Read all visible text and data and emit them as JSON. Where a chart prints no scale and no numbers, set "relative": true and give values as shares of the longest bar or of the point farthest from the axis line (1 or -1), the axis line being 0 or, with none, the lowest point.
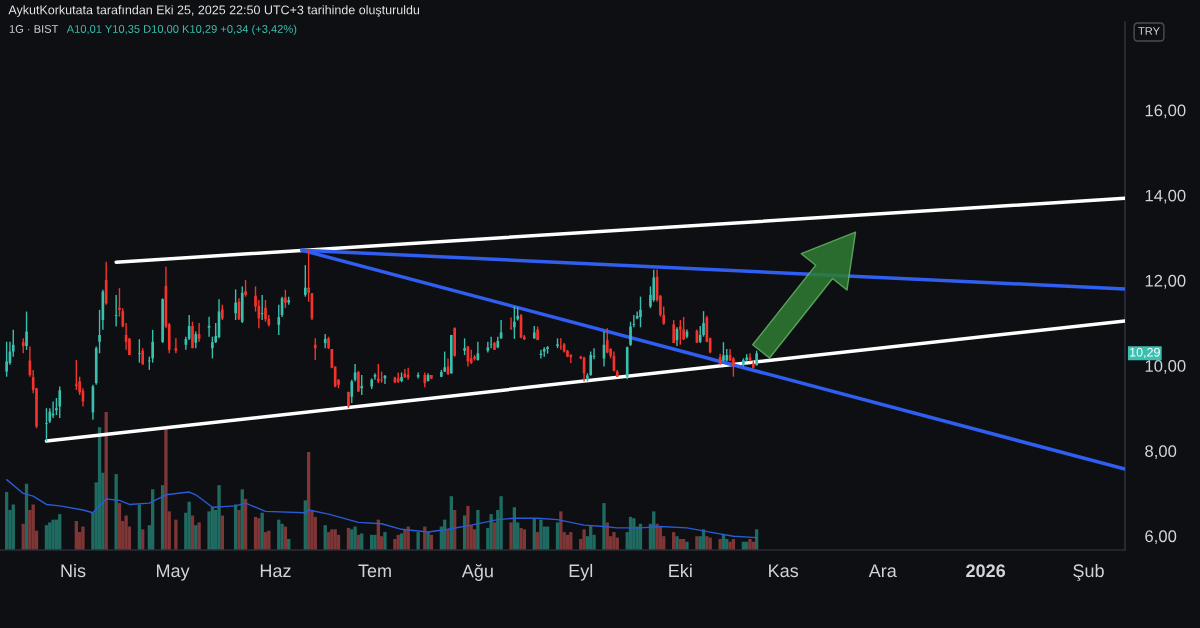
{
  "chart_data": [
    {
      "type": "candlestick",
      "title": "AykutKorkutata tarafından Eki 25, 2025 22:50 UTC+3 tarihinde oluşturuldu",
      "subtitle": "1G · BIST",
      "annotations": [
        "A10,01 Y10,35 D10,00 K10,29 +0,34 (+3,42%)",
        "TRY",
        "10,29"
      ],
      "x": [
        "2025-03-12",
        "2025-03-13",
        "2025-03-14",
        "2025-03-17",
        "2025-03-18",
        "2025-03-19",
        "2025-03-20",
        "2025-03-21",
        "2025-03-24",
        "2025-03-25",
        "2025-03-26",
        "2025-03-27",
        "2025-03-28",
        "2025-04-02",
        "2025-04-03",
        "2025-04-04",
        "2025-04-07",
        "2025-04-08",
        "2025-04-09",
        "2025-04-10",
        "2025-04-11",
        "2025-04-14",
        "2025-04-15",
        "2025-04-16",
        "2025-04-17",
        "2025-04-18",
        "2025-04-21",
        "2025-04-22",
        "2025-04-24",
        "2025-04-25",
        "2025-04-28",
        "2025-04-29",
        "2025-04-30",
        "2025-05-02",
        "2025-05-05",
        "2025-05-06",
        "2025-05-07",
        "2025-05-08",
        "2025-05-09",
        "2025-05-12",
        "2025-05-13",
        "2025-05-14",
        "2025-05-15",
        "2025-05-16",
        "2025-05-20",
        "2025-05-21",
        "2025-05-22",
        "2025-05-23",
        "2025-05-26",
        "2025-05-27",
        "2025-05-28",
        "2025-05-29",
        "2025-05-30",
        "2025-06-02",
        "2025-06-03",
        "2025-06-04",
        "2025-06-05",
        "2025-06-10",
        "2025-06-11",
        "2025-06-12",
        "2025-06-13",
        "2025-06-16",
        "2025-06-17",
        "2025-06-18",
        "2025-06-19",
        "2025-06-20",
        "2025-06-23",
        "2025-06-24",
        "2025-06-25",
        "2025-06-26",
        "2025-06-27",
        "2025-06-30",
        "2025-07-01",
        "2025-07-02",
        "2025-07-03",
        "2025-07-04",
        "2025-07-07",
        "2025-07-08",
        "2025-07-09",
        "2025-07-10",
        "2025-07-11",
        "2025-07-14",
        "2025-07-16",
        "2025-07-17",
        "2025-07-18",
        "2025-07-21",
        "2025-07-22",
        "2025-07-23",
        "2025-07-24",
        "2025-07-25",
        "2025-07-28",
        "2025-07-29",
        "2025-07-30",
        "2025-07-31",
        "2025-08-01",
        "2025-08-04",
        "2025-08-05",
        "2025-08-06",
        "2025-08-07",
        "2025-08-08",
        "2025-08-11",
        "2025-08-12",
        "2025-08-13",
        "2025-08-14",
        "2025-08-15",
        "2025-08-18",
        "2025-08-19",
        "2025-08-20",
        "2025-08-21",
        "2025-08-22",
        "2025-08-25",
        "2025-08-26",
        "2025-08-27",
        "2025-08-28",
        "2025-08-29",
        "2025-09-01",
        "2025-09-02",
        "2025-09-03",
        "2025-09-04",
        "2025-09-05",
        "2025-09-08",
        "2025-09-09",
        "2025-09-10",
        "2025-09-11",
        "2025-09-12",
        "2025-09-15",
        "2025-09-16",
        "2025-09-17",
        "2025-09-18",
        "2025-09-19",
        "2025-09-22",
        "2025-09-23",
        "2025-09-24",
        "2025-09-25",
        "2025-09-26",
        "2025-09-29",
        "2025-09-30",
        "2025-10-01",
        "2025-10-02",
        "2025-10-03",
        "2025-10-06",
        "2025-10-07",
        "2025-10-08",
        "2025-10-09",
        "2025-10-10",
        "2025-10-13",
        "2025-10-14",
        "2025-10-15",
        "2025-10-16",
        "2025-10-17",
        "2025-10-20",
        "2025-10-21",
        "2025-10-22",
        "2025-10-23",
        "2025-10-24"
      ],
      "ohlc": [
        [
          9.86,
          10.56,
          9.74,
          10.1
        ],
        [
          10.06,
          10.56,
          10.02,
          10.33
        ],
        [
          10.33,
          10.84,
          10.21,
          10.49
        ],
        [
          10.55,
          10.64,
          10.29,
          10.46
        ],
        [
          10.46,
          11.27,
          10.37,
          10.8
        ],
        [
          10.12,
          10.45,
          9.74,
          9.78
        ],
        [
          9.73,
          9.9,
          9.35,
          9.43
        ],
        [
          9.47,
          9.47,
          8.53,
          8.57
        ],
        [
          8.63,
          9.0,
          8.22,
          8.65
        ],
        [
          8.69,
          9.0,
          8.65,
          8.92
        ],
        [
          8.83,
          9.16,
          8.77,
          8.87
        ],
        [
          8.95,
          9.24,
          8.84,
          9.0
        ],
        [
          9.04,
          9.51,
          8.77,
          9.42
        ],
        [
          9.56,
          10.13,
          9.43,
          9.52
        ],
        [
          9.63,
          9.74,
          9.31,
          9.37
        ],
        [
          9.41,
          9.47,
          9.04,
          9.16
        ],
        [
          8.9,
          9.55,
          8.73,
          9.51
        ],
        [
          9.59,
          10.45,
          9.55,
          10.41
        ],
        [
          10.56,
          11.31,
          10.29,
          10.72
        ],
        [
          11.07,
          11.78,
          10.84,
          11.74
        ],
        [
          12.01,
          12.44,
          11.43,
          11.46
        ],
        [
          11.17,
          11.66,
          10.92,
          11.19
        ],
        [
          11.36,
          11.82,
          11.15,
          11.31
        ],
        [
          11.28,
          11.35,
          10.9,
          10.92
        ],
        [
          10.72,
          11.0,
          10.37,
          10.56
        ],
        [
          10.64,
          10.64,
          10.25,
          10.25
        ],
        [
          10.27,
          10.62,
          10.07,
          10.29
        ],
        [
          10.35,
          10.41,
          10.02,
          10.03
        ],
        [
          10.1,
          10.21,
          9.9,
          10.12
        ],
        [
          10.17,
          10.84,
          10.07,
          10.56
        ],
        [
          10.56,
          11.58,
          10.53,
          11.56
        ],
        [
          11.87,
          12.32,
          10.88,
          10.92
        ],
        [
          10.97,
          11.0,
          10.29,
          10.37
        ],
        [
          10.41,
          10.64,
          10.29,
          10.35
        ],
        [
          10.49,
          10.68,
          10.37,
          10.62
        ],
        [
          10.63,
          11.19,
          10.6,
          10.93
        ],
        [
          10.93,
          11.03,
          10.41,
          10.41
        ],
        [
          10.54,
          10.8,
          10.41,
          10.74
        ],
        [
          10.74,
          11.0,
          10.56,
          10.63
        ],
        [
          10.89,
          11.15,
          10.68,
          10.93
        ],
        [
          10.41,
          10.68,
          10.17,
          10.55
        ],
        [
          10.55,
          11.0,
          10.53,
          10.7
        ],
        [
          10.67,
          11.56,
          10.64,
          11.27
        ],
        [
          11.32,
          11.43,
          11.07,
          11.11
        ],
        [
          11.23,
          11.79,
          11.07,
          11.48
        ],
        [
          11.5,
          11.58,
          11.07,
          11.09
        ],
        [
          11.03,
          11.86,
          11.0,
          11.71
        ],
        [
          11.75,
          12.01,
          11.62,
          11.66
        ],
        [
          11.64,
          11.86,
          11.27,
          11.39
        ],
        [
          11.4,
          11.54,
          10.88,
          11.11
        ],
        [
          11.21,
          11.66,
          11.07,
          11.23
        ],
        [
          11.36,
          11.54,
          11.03,
          11.09
        ],
        [
          11.1,
          11.19,
          10.92,
          10.96
        ],
        [
          10.96,
          11.43,
          10.72,
          11.14
        ],
        [
          11.19,
          11.62,
          11.14,
          11.58
        ],
        [
          11.6,
          11.78,
          11.35,
          11.48
        ],
        [
          11.48,
          11.62,
          11.43,
          11.54
        ],
        [
          11.66,
          12.36,
          11.62,
          11.83
        ],
        [
          11.83,
          12.72,
          11.5,
          11.71
        ],
        [
          11.7,
          11.7,
          11.07,
          11.11
        ],
        [
          10.49,
          10.64,
          10.13,
          10.41
        ],
        [
          10.53,
          10.74,
          10.41,
          10.63
        ],
        [
          10.64,
          10.68,
          10.39,
          10.41
        ],
        [
          10.39,
          10.39,
          9.94,
          9.95
        ],
        [
          9.98,
          9.98,
          9.49,
          9.51
        ],
        [
          9.67,
          9.68,
          9.47,
          9.55
        ],
        [
          9.38,
          9.39,
          9.0,
          9.04
        ],
        [
          9.27,
          9.67,
          9.12,
          9.63
        ],
        [
          9.67,
          10.04,
          9.63,
          9.84
        ],
        [
          9.85,
          9.88,
          9.39,
          9.39
        ],
        [
          9.47,
          9.78,
          9.31,
          9.52
        ],
        [
          9.51,
          9.7,
          9.45,
          9.67
        ],
        [
          9.74,
          9.82,
          9.67,
          9.78
        ],
        [
          9.7,
          10.04,
          9.59,
          9.63
        ],
        [
          9.67,
          9.86,
          9.6,
          9.65
        ],
        [
          9.7,
          9.78,
          9.57,
          9.76
        ],
        [
          9.72,
          9.74,
          9.59,
          9.61
        ],
        [
          9.7,
          9.84,
          9.59,
          9.62
        ],
        [
          9.64,
          9.84,
          9.61,
          9.73
        ],
        [
          9.81,
          9.92,
          9.71,
          9.73
        ],
        [
          9.78,
          9.95,
          9.67,
          9.72
        ],
        [
          9.74,
          9.84,
          9.7,
          9.78
        ],
        [
          9.78,
          9.84,
          9.49,
          9.59
        ],
        [
          9.64,
          9.82,
          9.63,
          9.78
        ],
        [
          9.78,
          9.78,
          9.68,
          9.7
        ],
        [
          9.74,
          9.9,
          9.73,
          9.85
        ],
        [
          9.86,
          10.33,
          9.85,
          9.96
        ],
        [
          9.98,
          10.17,
          9.78,
          9.8
        ],
        [
          9.82,
          10.72,
          9.81,
          10.72
        ],
        [
          10.88,
          10.9,
          10.21,
          10.23
        ],
        [
          10.35,
          10.64,
          10.25,
          10.41
        ],
        [
          10.45,
          10.46,
          9.98,
          10.1
        ],
        [
          10.17,
          10.37,
          10.04,
          10.07
        ],
        [
          10.21,
          10.25,
          10.12,
          10.16
        ],
        [
          10.13,
          10.56,
          10.12,
          10.29
        ],
        [
          10.35,
          10.56,
          10.31,
          10.43
        ],
        [
          10.49,
          10.68,
          10.41,
          10.5
        ],
        [
          10.53,
          10.56,
          10.37,
          10.37
        ],
        [
          10.43,
          10.68,
          10.41,
          10.58
        ],
        [
          10.64,
          11.07,
          10.63,
          10.78
        ],
        [
          10.89,
          11.13,
          10.84,
          10.87
        ],
        [
          10.9,
          11.39,
          10.63,
          11.03
        ],
        [
          11.09,
          11.37,
          11.06,
          11.17
        ],
        [
          11.18,
          11.21,
          10.64,
          10.66
        ],
        [
          10.68,
          10.72,
          10.6,
          10.62
        ],
        [
          10.64,
          10.93,
          10.63,
          10.78
        ],
        [
          10.85,
          10.92,
          10.6,
          10.6
        ],
        [
          10.25,
          10.37,
          10.17,
          10.28
        ],
        [
          10.33,
          10.43,
          10.21,
          10.39
        ],
        [
          10.39,
          10.46,
          10.28,
          10.43
        ],
        [
          10.46,
          10.64,
          10.41,
          10.5
        ],
        [
          10.45,
          10.64,
          10.37,
          10.43
        ],
        [
          10.5,
          10.53,
          10.31,
          10.33
        ],
        [
          10.35,
          10.37,
          10.2,
          10.21
        ],
        [
          10.25,
          10.27,
          10.06,
          10.2
        ],
        [
          10.21,
          10.23,
          10.15,
          10.17
        ],
        [
          10.19,
          10.21,
          9.63,
          9.82
        ],
        [
          9.67,
          9.82,
          9.63,
          9.77
        ],
        [
          9.78,
          10.33,
          9.76,
          10.25
        ],
        [
          10.21,
          10.41,
          10.15,
          10.23
        ],
        [
          10.17,
          10.8,
          9.98,
          10.49
        ],
        [
          10.6,
          10.88,
          10.29,
          10.31
        ],
        [
          10.39,
          10.41,
          10.17,
          10.23
        ],
        [
          10.23,
          10.33,
          9.86,
          9.88
        ],
        [
          9.86,
          9.9,
          9.73,
          9.74
        ],
        [
          9.74,
          10.45,
          9.68,
          10.43
        ],
        [
          10.49,
          11.03,
          10.46,
          10.92
        ],
        [
          10.96,
          11.19,
          10.9,
          10.98
        ],
        [
          11.11,
          11.27,
          11.09,
          11.17
        ],
        [
          11.14,
          11.62,
          10.9,
          11.31
        ],
        [
          11.39,
          11.86,
          11.35,
          11.66
        ],
        [
          11.54,
          12.25,
          11.5,
          12.07
        ],
        [
          12.09,
          12.26,
          11.5,
          11.54
        ],
        [
          11.64,
          11.66,
          11.15,
          11.19
        ],
        [
          11.19,
          11.39,
          10.96,
          10.98
        ],
        [
          10.97,
          11.07,
          10.53,
          10.53
        ],
        [
          10.6,
          10.9,
          10.46,
          10.86
        ],
        [
          10.92,
          11.07,
          10.49,
          10.85
        ],
        [
          10.85,
          11.14,
          10.6,
          10.62
        ],
        [
          10.68,
          10.85,
          10.64,
          10.8
        ],
        [
          10.82,
          10.85,
          10.53,
          10.54
        ],
        [
          10.56,
          10.93,
          10.53,
          10.72
        ],
        [
          10.72,
          11.28,
          10.68,
          11.0
        ],
        [
          11.13,
          11.17,
          10.55,
          10.56
        ],
        [
          10.64,
          10.66,
          10.29,
          10.31
        ],
        [
          10.2,
          10.28,
          10.02,
          10.04
        ],
        [
          10.12,
          10.55,
          10.1,
          10.24
        ],
        [
          10.12,
          10.39,
          10.1,
          10.25
        ],
        [
          10.25,
          10.39,
          10.11,
          10.12
        ],
        [
          10.17,
          10.2,
          9.74,
          9.99
        ],
        [
          10.02,
          10.17,
          9.98,
          10.13
        ],
        [
          10.13,
          10.27,
          10.1,
          10.19
        ],
        [
          10.19,
          10.29,
          10.1,
          10.13
        ],
        [
          10.05,
          10.12,
          9.93,
          9.95
        ],
        [
          10.01,
          10.35,
          10.0,
          10.29
        ]
      ],
      "series": [
        {
          "type": "line",
          "x": [
            "2025-04-14",
            "2026-02-12"
          ],
          "values": [
            12.43,
            13.93
          ],
          "color": "#ffffff"
        },
        {
          "type": "line",
          "x": [
            "2025-03-24",
            "2026-02-12"
          ],
          "values": [
            8.23,
            11.05
          ],
          "color": "#ffffff"
        },
        {
          "type": "line",
          "x": [
            "2025-06-09",
            "2026-02-12"
          ],
          "values": [
            12.71,
            11.8
          ],
          "color": "#2f5ef0"
        },
        {
          "type": "line",
          "x": [
            "2025-06-09",
            "2026-02-12"
          ],
          "values": [
            12.71,
            7.57
          ],
          "color": "#2f5ef0"
        }
      ],
      "xlim": [
        "2025-03-10",
        "2026-02-12"
      ],
      "ylim": [
        5.67,
        18.07
      ],
      "xticks": [
        {
          "value": "2025-04-01",
          "label": "Nis"
        },
        {
          "value": "2025-05-01",
          "label": "May"
        },
        {
          "value": "2025-06-01",
          "label": "Haz"
        },
        {
          "value": "2025-07-01",
          "label": "Tem"
        },
        {
          "value": "2025-08-01",
          "label": "Ağu"
        },
        {
          "value": "2025-09-01",
          "label": "Eyl"
        },
        {
          "value": "2025-10-01",
          "label": "Eki"
        },
        {
          "value": "2025-11-01",
          "label": "Kas"
        },
        {
          "value": "2025-12-01",
          "label": "Ara"
        },
        {
          "value": "2026-01-01",
          "label": "2026"
        },
        {
          "value": "2026-02-01",
          "label": "Şub"
        }
      ],
      "yticks": [
        {
          "value": 6,
          "label": "6,00"
        },
        {
          "value": 8,
          "label": "8,00"
        },
        {
          "value": 10,
          "label": "10,00"
        },
        {
          "value": 12,
          "label": "12,00"
        },
        {
          "value": 14,
          "label": "14,00"
        },
        {
          "value": 16,
          "label": "16,00"
        }
      ]
    },
    {
      "type": "bar",
      "relative": true,
      "tick_labels": false,
      "xlim": [
        "2025-03-10",
        "2026-02-12"
      ],
      "x": [
        "2025-03-12",
        "2025-03-13",
        "2025-03-14",
        "2025-03-17",
        "2025-03-18",
        "2025-03-19",
        "2025-03-20",
        "2025-03-21",
        "2025-03-24",
        "2025-03-25",
        "2025-03-26",
        "2025-03-27",
        "2025-03-28",
        "2025-04-02",
        "2025-04-03",
        "2025-04-04",
        "2025-04-07",
        "2025-04-08",
        "2025-04-09",
        "2025-04-10",
        "2025-04-11",
        "2025-04-14",
        "2025-04-15",
        "2025-04-16",
        "2025-04-17",
        "2025-04-18",
        "2025-04-21",
        "2025-04-22",
        "2025-04-24",
        "2025-04-25",
        "2025-04-28",
        "2025-04-29",
        "2025-04-30",
        "2025-05-02",
        "2025-05-05",
        "2025-05-06",
        "2025-05-07",
        "2025-05-08",
        "2025-05-09",
        "2025-05-12",
        "2025-05-13",
        "2025-05-14",
        "2025-05-15",
        "2025-05-16",
        "2025-05-20",
        "2025-05-21",
        "2025-05-22",
        "2025-05-23",
        "2025-05-26",
        "2025-05-27",
        "2025-05-28",
        "2025-05-29",
        "2025-05-30",
        "2025-06-02",
        "2025-06-03",
        "2025-06-04",
        "2025-06-05",
        "2025-06-10",
        "2025-06-11",
        "2025-06-12",
        "2025-06-13",
        "2025-06-16",
        "2025-06-17",
        "2025-06-18",
        "2025-06-19",
        "2025-06-20",
        "2025-06-23",
        "2025-06-24",
        "2025-06-25",
        "2025-06-26",
        "2025-06-27",
        "2025-06-30",
        "2025-07-01",
        "2025-07-02",
        "2025-07-03",
        "2025-07-04",
        "2025-07-07",
        "2025-07-08",
        "2025-07-09",
        "2025-07-10",
        "2025-07-11",
        "2025-07-14",
        "2025-07-16",
        "2025-07-17",
        "2025-07-18",
        "2025-07-21",
        "2025-07-22",
        "2025-07-23",
        "2025-07-24",
        "2025-07-25",
        "2025-07-28",
        "2025-07-29",
        "2025-07-30",
        "2025-07-31",
        "2025-08-01",
        "2025-08-04",
        "2025-08-05",
        "2025-08-06",
        "2025-08-07",
        "2025-08-08",
        "2025-08-11",
        "2025-08-12",
        "2025-08-13",
        "2025-08-14",
        "2025-08-15",
        "2025-08-18",
        "2025-08-19",
        "2025-08-20",
        "2025-08-21",
        "2025-08-22",
        "2025-08-25",
        "2025-08-26",
        "2025-08-27",
        "2025-08-28",
        "2025-08-29",
        "2025-09-01",
        "2025-09-02",
        "2025-09-03",
        "2025-09-04",
        "2025-09-05",
        "2025-09-08",
        "2025-09-09",
        "2025-09-10",
        "2025-09-11",
        "2025-09-12",
        "2025-09-15",
        "2025-09-16",
        "2025-09-17",
        "2025-09-18",
        "2025-09-19",
        "2025-09-22",
        "2025-09-23",
        "2025-09-24",
        "2025-09-25",
        "2025-09-26",
        "2025-09-29",
        "2025-09-30",
        "2025-10-01",
        "2025-10-02",
        "2025-10-03",
        "2025-10-06",
        "2025-10-07",
        "2025-10-08",
        "2025-10-09",
        "2025-10-10",
        "2025-10-13",
        "2025-10-14",
        "2025-10-15",
        "2025-10-16",
        "2025-10-17",
        "2025-10-20",
        "2025-10-21",
        "2025-10-22",
        "2025-10-23",
        "2025-10-24"
      ],
      "series": [
        {
          "type": "bar",
          "values": [
            0.42,
            0.29,
            0.33,
            0.19,
            0.48,
            0.29,
            0.33,
            0.14,
            0.18,
            0.2,
            0.22,
            0.22,
            0.26,
            0.21,
            0.13,
            0.17,
            0.27,
            0.49,
            0.89,
            0.56,
            1,
            0.55,
            0.34,
            0.21,
            0.25,
            0.17,
            0.33,
            0.15,
            0.18,
            0.44,
            0.47,
            0.88,
            0.28,
            0.22,
            0.27,
            0.35,
            0.25,
            0.18,
            0.2,
            0.28,
            0.31,
            0.29,
            0.47,
            0.25,
            0.33,
            0.29,
            0.44,
            0.37,
            0.24,
            0.23,
            0.27,
            0.13,
            0.14,
            0.22,
            0.19,
            0.17,
            0.08,
            0.36,
            0.71,
            0.29,
            0.24,
            0.18,
            0.13,
            0.15,
            0.15,
            0.11,
            0.16,
            0.15,
            0.17,
            0.11,
            0.12,
            0.11,
            0.11,
            0.22,
            0.1,
            0.13,
            0.08,
            0.11,
            0.12,
            0.15,
            0.17,
            0.13,
            0.17,
            0.13,
            0.11,
            0.17,
            0.22,
            0.15,
            0.39,
            0.29,
            0.25,
            0.32,
            0.18,
            0.15,
            0.29,
            0.16,
            0.26,
            0.2,
            0.29,
            0.39,
            0.2,
            0.31,
            0.2,
            0.16,
            0.15,
            0.23,
            0.13,
            0.22,
            0.17,
            0.17,
            0.2,
            0.28,
            0.13,
            0.11,
            0.13,
            0.08,
            0.15,
            0.1,
            0.18,
            0.11,
            0.34,
            0.2,
            0.1,
            0.13,
            0.09,
            0.13,
            0.24,
            0.23,
            0.17,
            0.19,
            0.19,
            0.28,
            0.19,
            0.17,
            0.1,
            0.13,
            0.1,
            0.08,
            0.08,
            0.06,
            0.1,
            0.1,
            0.15,
            0.1,
            0.09,
            0.08,
            0.11,
            0.08,
            0.06,
            0.08,
            0.06,
            0.06,
            0.08,
            0.06,
            0.15
          ],
          "colors": [
            "#1f6b62",
            "#1f6b62",
            "#1f6b62",
            "#7e3636",
            "#1f6b62",
            "#7e3636",
            "#7e3636",
            "#7e3636",
            "#1f6b62",
            "#1f6b62",
            "#1f6b62",
            "#1f6b62",
            "#1f6b62",
            "#7e3636",
            "#7e3636",
            "#7e3636",
            "#1f6b62",
            "#1f6b62",
            "#1f6b62",
            "#1f6b62",
            "#7e3636",
            "#1f6b62",
            "#7e3636",
            "#7e3636",
            "#7e3636",
            "#7e3636",
            "#1f6b62",
            "#7e3636",
            "#1f6b62",
            "#1f6b62",
            "#1f6b62",
            "#7e3636",
            "#7e3636",
            "#7e3636",
            "#1f6b62",
            "#1f6b62",
            "#7e3636",
            "#1f6b62",
            "#7e3636",
            "#1f6b62",
            "#1f6b62",
            "#1f6b62",
            "#1f6b62",
            "#7e3636",
            "#1f6b62",
            "#7e3636",
            "#1f6b62",
            "#7e3636",
            "#7e3636",
            "#7e3636",
            "#1f6b62",
            "#7e3636",
            "#7e3636",
            "#1f6b62",
            "#1f6b62",
            "#7e3636",
            "#1f6b62",
            "#1f6b62",
            "#7e3636",
            "#7e3636",
            "#7e3636",
            "#1f6b62",
            "#7e3636",
            "#7e3636",
            "#7e3636",
            "#7e3636",
            "#7e3636",
            "#1f6b62",
            "#1f6b62",
            "#7e3636",
            "#1f6b62",
            "#1f6b62",
            "#1f6b62",
            "#7e3636",
            "#7e3636",
            "#1f6b62",
            "#7e3636",
            "#7e3636",
            "#1f6b62",
            "#7e3636",
            "#7e3636",
            "#1f6b62",
            "#7e3636",
            "#1f6b62",
            "#7e3636",
            "#1f6b62",
            "#1f6b62",
            "#7e3636",
            "#1f6b62",
            "#7e3636",
            "#1f6b62",
            "#7e3636",
            "#7e3636",
            "#7e3636",
            "#1f6b62",
            "#1f6b62",
            "#1f6b62",
            "#7e3636",
            "#1f6b62",
            "#1f6b62",
            "#7e3636",
            "#1f6b62",
            "#1f6b62",
            "#7e3636",
            "#7e3636",
            "#1f6b62",
            "#7e3636",
            "#1f6b62",
            "#1f6b62",
            "#1f6b62",
            "#1f6b62",
            "#7e3636",
            "#7e3636",
            "#7e3636",
            "#7e3636",
            "#7e3636",
            "#7e3636",
            "#1f6b62",
            "#1f6b62",
            "#1f6b62",
            "#1f6b62",
            "#7e3636",
            "#7e3636",
            "#7e3636",
            "#7e3636",
            "#1f6b62",
            "#1f6b62",
            "#1f6b62",
            "#1f6b62",
            "#1f6b62",
            "#1f6b62",
            "#1f6b62",
            "#7e3636",
            "#7e3636",
            "#7e3636",
            "#7e3636",
            "#1f6b62",
            "#7e3636",
            "#7e3636",
            "#1f6b62",
            "#7e3636",
            "#1f6b62",
            "#1f6b62",
            "#7e3636",
            "#7e3636",
            "#7e3636",
            "#1f6b62",
            "#1f6b62",
            "#7e3636",
            "#7e3636",
            "#1f6b62",
            "#1f6b62",
            "#7e3636",
            "#7e3636",
            "#1f6b62"
          ]
        },
        {
          "type": "line",
          "color": "#2a5bd7",
          "x": [
            "2025-03-12",
            "2025-03-17",
            "2025-03-20",
            "2025-03-24",
            "2025-03-28",
            "2025-04-04",
            "2025-04-07",
            "2025-04-09",
            "2025-04-11",
            "2025-04-15",
            "2025-04-18",
            "2025-04-24",
            "2025-04-29",
            "2025-05-06",
            "2025-05-08",
            "2025-05-13",
            "2025-05-20",
            "2025-05-23",
            "2025-05-29",
            "2025-06-10",
            "2025-06-11",
            "2025-06-17",
            "2025-06-26",
            "2025-07-03",
            "2025-07-09",
            "2025-07-17",
            "2025-07-23",
            "2025-07-30",
            "2025-08-07",
            "2025-08-12",
            "2025-08-19",
            "2025-08-25",
            "2025-09-02",
            "2025-09-08",
            "2025-09-12",
            "2025-09-19",
            "2025-09-25",
            "2025-10-03",
            "2025-10-10",
            "2025-10-17",
            "2025-10-24"
          ],
          "values": [
            0.51,
            0.41,
            0.39,
            0.33,
            0.32,
            0.29,
            0.27,
            0.32,
            0.37,
            0.36,
            0.33,
            0.34,
            0.4,
            0.42,
            0.4,
            0.31,
            0.32,
            0.34,
            0.28,
            0.27,
            0.29,
            0.26,
            0.2,
            0.19,
            0.15,
            0.13,
            0.15,
            0.18,
            0.22,
            0.23,
            0.23,
            0.22,
            0.18,
            0.17,
            0.16,
            0.16,
            0.17,
            0.16,
            0.13,
            0.1,
            0.09
          ]
        }
      ]
    }
  ]
}
